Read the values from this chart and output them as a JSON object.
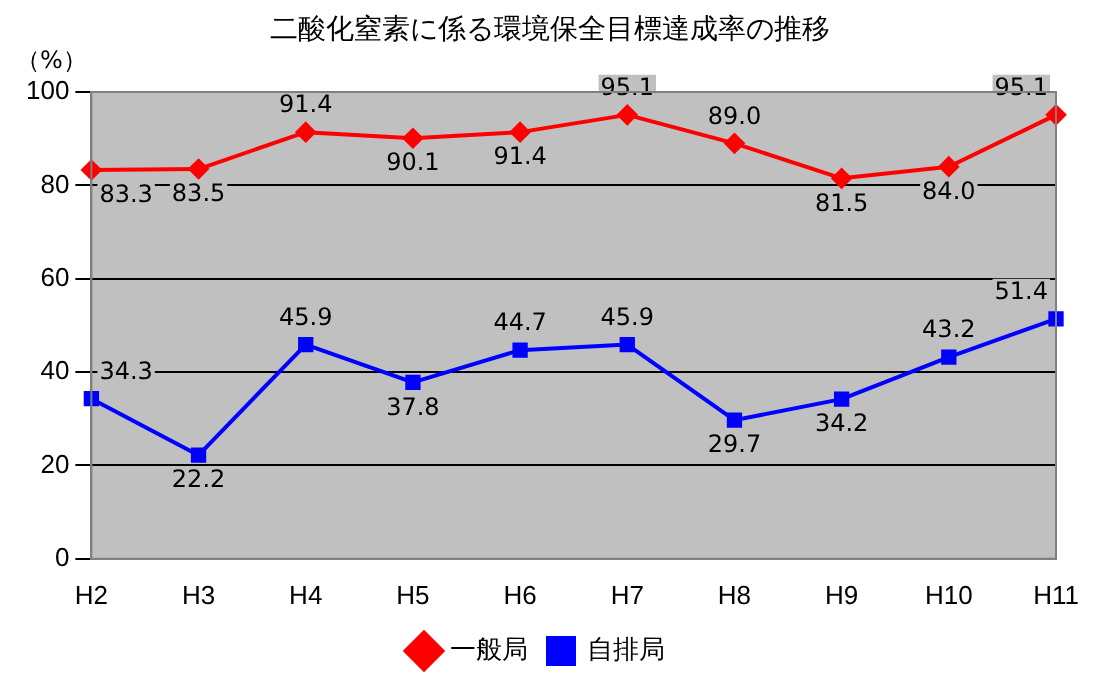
{
  "chart_data": {
    "type": "line",
    "title": "二酸化窒素に係る環境保全目標達成率の推移",
    "ylabel": "（%）",
    "categories": [
      "H2",
      "H3",
      "H4",
      "H5",
      "H6",
      "H7",
      "H8",
      "H9",
      "H10",
      "H11"
    ],
    "series": [
      {
        "name": "一般局",
        "color": "#ff0000",
        "marker": "diamond",
        "values": [
          83.3,
          83.5,
          91.4,
          90.1,
          91.4,
          95.1,
          89.0,
          81.5,
          84.0,
          95.1
        ],
        "value_labels": [
          "83.3",
          "83.5",
          "91.4",
          "90.1",
          "91.4",
          "95.1",
          "89.0",
          "81.5",
          "84.0",
          "95.1"
        ]
      },
      {
        "name": "自排局",
        "color": "#0000ff",
        "marker": "square",
        "values": [
          34.3,
          22.2,
          45.9,
          37.8,
          44.7,
          45.9,
          29.7,
          34.2,
          43.2,
          51.4
        ],
        "value_labels": [
          "34.3",
          "22.2",
          "45.9",
          "37.8",
          "44.7",
          "45.9",
          "29.7",
          "34.2",
          "43.2",
          "51.4"
        ]
      }
    ],
    "ylim": [
      0,
      100
    ],
    "yticks": [
      0,
      20,
      40,
      60,
      80,
      100
    ],
    "grid": "y",
    "legend": "bottom",
    "line_style": "solid"
  }
}
